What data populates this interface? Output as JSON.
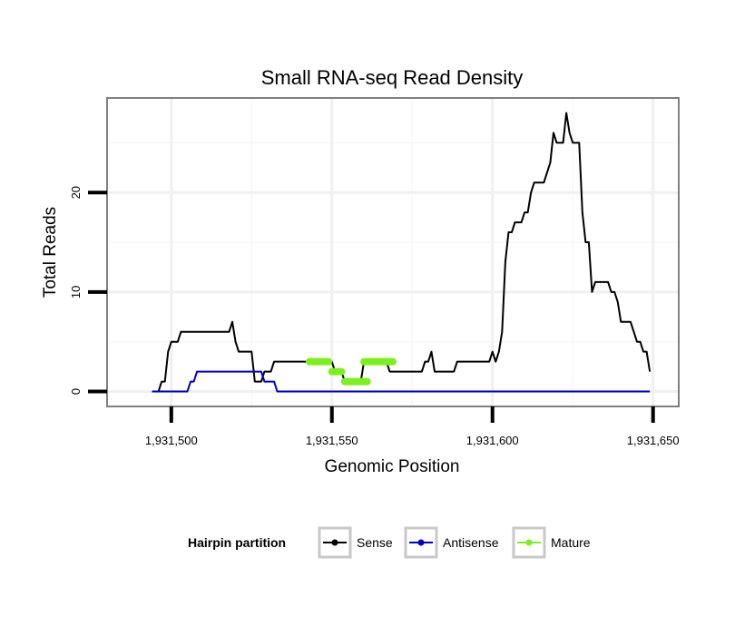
{
  "chart_data": {
    "type": "line",
    "title": "Small RNA-seq Read Density",
    "xlabel": "Genomic Position",
    "ylabel": "Total Reads",
    "xlim": [
      1931480,
      1931658
    ],
    "ylim": [
      -1.5,
      29.5
    ],
    "x_ticks": [
      1931500,
      1931550,
      1931600,
      1931650
    ],
    "x_tick_labels": [
      "1,931,500",
      "1,931,550",
      "1,931,600",
      "1,931,650"
    ],
    "y_ticks": [
      0,
      10,
      20
    ],
    "y_tick_labels": [
      "0",
      "10",
      "20"
    ],
    "grid": true,
    "legend": {
      "title": "Hairpin partition",
      "position": "bottom",
      "entries": [
        "Sense",
        "Antisense",
        "Mature"
      ]
    },
    "series": [
      {
        "name": "Sense",
        "color": "#000000",
        "points": [
          [
            1931494,
            0
          ],
          [
            1931496,
            0
          ],
          [
            1931497,
            1
          ],
          [
            1931498,
            1
          ],
          [
            1931499,
            4
          ],
          [
            1931500,
            5
          ],
          [
            1931502,
            5
          ],
          [
            1931503,
            6
          ],
          [
            1931518,
            6
          ],
          [
            1931519,
            7
          ],
          [
            1931520,
            5
          ],
          [
            1931521,
            4
          ],
          [
            1931525,
            4
          ],
          [
            1931526,
            1
          ],
          [
            1931528,
            1
          ],
          [
            1931529,
            2
          ],
          [
            1931531,
            2
          ],
          [
            1931532,
            3
          ],
          [
            1931550,
            3
          ],
          [
            1931551,
            2
          ],
          [
            1931553,
            2
          ],
          [
            1931554,
            1
          ],
          [
            1931559,
            1
          ],
          [
            1931560,
            3
          ],
          [
            1931567,
            3
          ],
          [
            1931568,
            2
          ],
          [
            1931578,
            2
          ],
          [
            1931579,
            3
          ],
          [
            1931580,
            3
          ],
          [
            1931581,
            4
          ],
          [
            1931582,
            2
          ],
          [
            1931588,
            2
          ],
          [
            1931589,
            3
          ],
          [
            1931599,
            3
          ],
          [
            1931600,
            4
          ],
          [
            1931601,
            3
          ],
          [
            1931602,
            4
          ],
          [
            1931603,
            6
          ],
          [
            1931604,
            13
          ],
          [
            1931605,
            16
          ],
          [
            1931606,
            16
          ],
          [
            1931607,
            17
          ],
          [
            1931609,
            17
          ],
          [
            1931610,
            18
          ],
          [
            1931611,
            18
          ],
          [
            1931612,
            20
          ],
          [
            1931613,
            21
          ],
          [
            1931616,
            21
          ],
          [
            1931618,
            23
          ],
          [
            1931619,
            26
          ],
          [
            1931620,
            25
          ],
          [
            1931622,
            25
          ],
          [
            1931623,
            28
          ],
          [
            1931624,
            26
          ],
          [
            1931625,
            25
          ],
          [
            1931627,
            25
          ],
          [
            1931628,
            18
          ],
          [
            1931629,
            15
          ],
          [
            1931630,
            15
          ],
          [
            1931631,
            10
          ],
          [
            1931632,
            11
          ],
          [
            1931636,
            11
          ],
          [
            1931637,
            10
          ],
          [
            1931638,
            10
          ],
          [
            1931639,
            9
          ],
          [
            1931640,
            7
          ],
          [
            1931643,
            7
          ],
          [
            1931644,
            6
          ],
          [
            1931645,
            5
          ],
          [
            1931646,
            5
          ],
          [
            1931647,
            4
          ],
          [
            1931648,
            4
          ],
          [
            1931649,
            2
          ]
        ]
      },
      {
        "name": "Antisense",
        "color": "#0000cc",
        "points": [
          [
            1931494,
            0
          ],
          [
            1931505,
            0
          ],
          [
            1931506,
            1
          ],
          [
            1931507,
            1
          ],
          [
            1931508,
            2
          ],
          [
            1931528,
            2
          ],
          [
            1931529,
            1
          ],
          [
            1931532,
            1
          ],
          [
            1931533,
            0
          ],
          [
            1931649,
            0
          ]
        ]
      },
      {
        "name": "Mature",
        "color": "#7cf01c",
        "segments": [
          [
            [
              1931543,
              3
            ],
            [
              1931549,
              3
            ]
          ],
          [
            [
              1931550,
              2
            ],
            [
              1931553,
              2
            ]
          ],
          [
            [
              1931554,
              1
            ],
            [
              1931561,
              1
            ]
          ],
          [
            [
              1931560,
              3
            ],
            [
              1931569,
              3
            ]
          ]
        ]
      }
    ]
  }
}
